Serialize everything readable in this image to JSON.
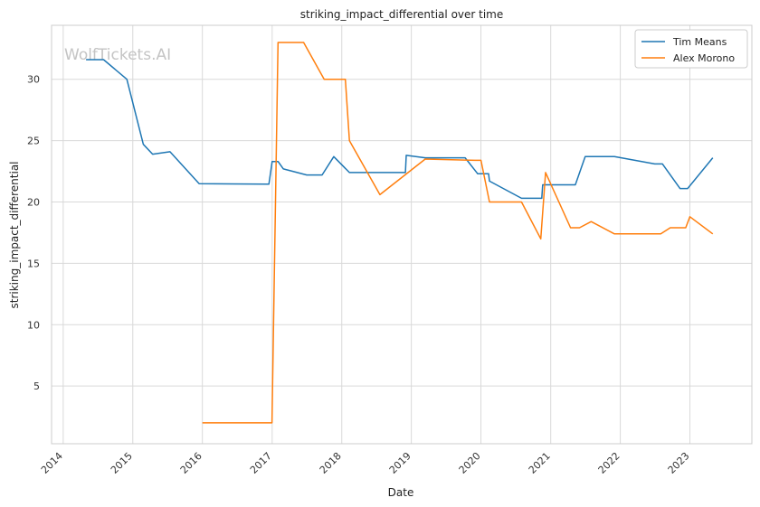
{
  "chart_data": {
    "type": "line",
    "title": "striking_impact_differential over time",
    "xlabel": "Date",
    "ylabel": "striking_impact_differential",
    "watermark": "WolfTickets.AI",
    "x_ticks": [
      "2014",
      "2015",
      "2016",
      "2017",
      "2018",
      "2019",
      "2020",
      "2021",
      "2022",
      "2023"
    ],
    "y_ticks": [
      "5",
      "10",
      "15",
      "20",
      "25",
      "30"
    ],
    "xlim": [
      "2013-11-01",
      "2023-11-22"
    ],
    "ylim": [
      0.3,
      34.4
    ],
    "grid": true,
    "legend_position": "top-right",
    "series": [
      {
        "name": "Tim Means",
        "color": "#1f77b4",
        "points": [
          [
            "2014-05-01",
            31.6
          ],
          [
            "2014-08-01",
            31.6
          ],
          [
            "2014-12-01",
            30.0
          ],
          [
            "2015-02-25",
            24.7
          ],
          [
            "2015-04-15",
            23.9
          ],
          [
            "2015-07-15",
            24.1
          ],
          [
            "2015-12-15",
            21.5
          ],
          [
            "2016-12-15",
            21.45
          ],
          [
            "2017-01-01",
            23.3
          ],
          [
            "2017-02-01",
            23.3
          ],
          [
            "2017-03-01",
            22.7
          ],
          [
            "2017-07-01",
            22.2
          ],
          [
            "2017-09-20",
            22.2
          ],
          [
            "2017-11-20",
            23.7
          ],
          [
            "2018-02-10",
            22.4
          ],
          [
            "2018-12-01",
            22.4
          ],
          [
            "2018-12-05",
            23.8
          ],
          [
            "2019-03-15",
            23.6
          ],
          [
            "2019-10-10",
            23.6
          ],
          [
            "2019-12-15",
            22.3
          ],
          [
            "2020-02-10",
            22.3
          ],
          [
            "2020-02-15",
            21.7
          ],
          [
            "2020-08-01",
            20.3
          ],
          [
            "2020-11-15",
            20.3
          ],
          [
            "2020-11-20",
            21.4
          ],
          [
            "2021-05-10",
            21.4
          ],
          [
            "2021-07-01",
            23.7
          ],
          [
            "2021-12-01",
            23.7
          ],
          [
            "2022-07-01",
            23.1
          ],
          [
            "2022-08-10",
            23.1
          ],
          [
            "2022-11-10",
            21.1
          ],
          [
            "2022-12-20",
            21.1
          ],
          [
            "2023-05-01",
            23.6
          ]
        ]
      },
      {
        "name": "Alex Morono",
        "color": "#ff7f0e",
        "points": [
          [
            "2016-01-01",
            2.0
          ],
          [
            "2016-12-31",
            2.0
          ],
          [
            "2017-02-01",
            33.0
          ],
          [
            "2017-06-15",
            33.0
          ],
          [
            "2017-10-01",
            30.0
          ],
          [
            "2018-01-20",
            30.0
          ],
          [
            "2018-02-10",
            25.0
          ],
          [
            "2018-07-20",
            20.6
          ],
          [
            "2019-03-15",
            23.5
          ],
          [
            "2019-12-01",
            23.4
          ],
          [
            "2020-01-01",
            23.4
          ],
          [
            "2020-02-15",
            20.0
          ],
          [
            "2020-08-01",
            20.0
          ],
          [
            "2020-11-10",
            17.0
          ],
          [
            "2020-12-05",
            22.4
          ],
          [
            "2021-04-15",
            17.9
          ],
          [
            "2021-06-01",
            17.9
          ],
          [
            "2021-08-01",
            18.4
          ],
          [
            "2021-12-01",
            17.4
          ],
          [
            "2022-08-01",
            17.4
          ],
          [
            "2022-09-20",
            17.9
          ],
          [
            "2022-12-10",
            17.9
          ],
          [
            "2023-01-01",
            18.8
          ],
          [
            "2023-05-01",
            17.4
          ]
        ]
      }
    ]
  }
}
